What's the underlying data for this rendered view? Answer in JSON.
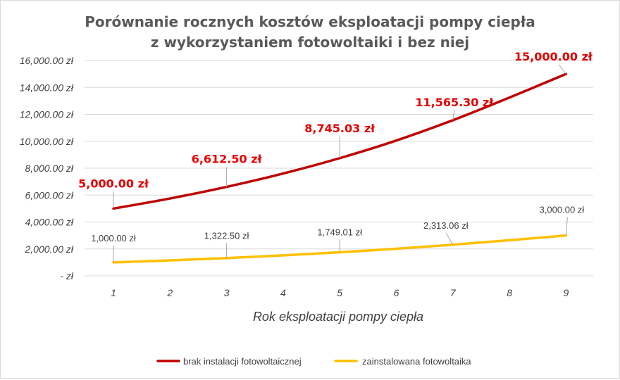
{
  "chart_data": {
    "type": "line",
    "title_lines": [
      "Porównanie rocznych kosztów eksploatacji pompy ciepła",
      "z wykorzystaniem fotowoltaiki i bez niej"
    ],
    "xlabel": "Rok eksploatacji pompy ciepła",
    "ylabel": "",
    "x": [
      1,
      2,
      3,
      4,
      5,
      6,
      7,
      8,
      9
    ],
    "x_tick_labels": [
      "1",
      "2",
      "3",
      "4",
      "5",
      "6",
      "7",
      "8",
      "9"
    ],
    "ylim": [
      0,
      16000
    ],
    "y_ticks": [
      0,
      2000,
      4000,
      6000,
      8000,
      10000,
      12000,
      14000,
      16000
    ],
    "y_tick_labels": [
      "-  zł",
      "2,000.00 zł",
      "4,000.00 zł",
      "6,000.00 zł",
      "8,000.00 zł",
      "10,000.00 zł",
      "12,000.00 zł",
      "14,000.00 zł",
      "16,000.00 zł"
    ],
    "grid": "horizontal",
    "legend_position": "bottom",
    "series": [
      {
        "name": "brak instalacji fotowoltaicznej",
        "color": "#c00000",
        "values": [
          5000,
          5750,
          6612.5,
          7604.4,
          8745.03,
          10056.8,
          11565.3,
          13250,
          15000
        ],
        "data_labels": [
          {
            "x": 1,
            "text": "5,000.00 zł"
          },
          {
            "x": 3,
            "text": "6,612.50 zł"
          },
          {
            "x": 5,
            "text": "8,745.03 zł"
          },
          {
            "x": 7,
            "text": "11,565.30 zł"
          },
          {
            "x": 9,
            "text": "15,000.00 zł"
          }
        ]
      },
      {
        "name": "zainstalowana fotowoltaika",
        "color": "#ffc000",
        "values": [
          1000,
          1150,
          1322.5,
          1520.9,
          1749.01,
          2011.4,
          2313.06,
          2650,
          3000
        ],
        "data_labels": [
          {
            "x": 1,
            "text": "1,000.00 zł"
          },
          {
            "x": 3,
            "text": "1,322.50 zł"
          },
          {
            "x": 5,
            "text": "1,749.01 zł"
          },
          {
            "x": 7,
            "text": "2,313.06 zł"
          },
          {
            "x": 9,
            "text": "3,000.00 zł"
          }
        ]
      }
    ]
  }
}
